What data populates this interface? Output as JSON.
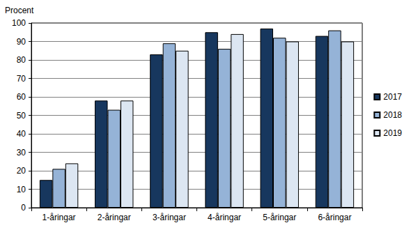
{
  "chart_data": {
    "type": "bar",
    "ylabel": "Procent",
    "categories": [
      "1-åringar",
      "2-åringar",
      "3-åringar",
      "4-åringar",
      "5-åringar",
      "6-åringar"
    ],
    "series": [
      {
        "name": "2017",
        "color": "#17375e",
        "values": [
          15,
          58,
          83,
          95,
          97,
          93
        ]
      },
      {
        "name": "2018",
        "color": "#95b3d7",
        "values": [
          21,
          53,
          89,
          86,
          92,
          96
        ]
      },
      {
        "name": "2019",
        "color": "#dce6f2",
        "values": [
          24,
          58,
          85,
          94,
          90,
          90
        ]
      }
    ],
    "ylim": [
      0,
      100
    ],
    "yticks": [
      0,
      10,
      20,
      30,
      40,
      50,
      60,
      70,
      80,
      90,
      100
    ],
    "grid": true,
    "legend": "right"
  }
}
